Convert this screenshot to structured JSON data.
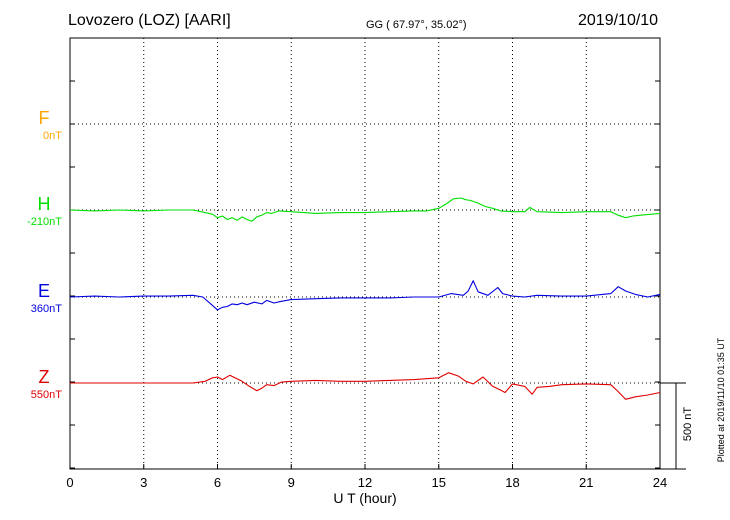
{
  "header": {
    "station": "Lovozero (LOZ)  [AARI]",
    "coords": "GG ( 67.97°,  35.02°)",
    "date": "2019/10/10"
  },
  "credit": "Plotted at 2019/11/10 01:35 UT",
  "scale_bar": {
    "label": "500 nT",
    "value": 500
  },
  "chart_data": {
    "type": "line",
    "title": "",
    "xlabel": "U T (hour)",
    "xlim": [
      0,
      24
    ],
    "xticks": [
      0,
      3,
      6,
      9,
      12,
      15,
      18,
      21,
      24
    ],
    "grid": true,
    "series": [
      {
        "name": "F",
        "baseline_label": "0nT",
        "color": "#FFA500",
        "x": [],
        "values": []
      },
      {
        "name": "H",
        "baseline_label": "-210nT",
        "color": "#00E000",
        "x": [
          0,
          1,
          2,
          3,
          4,
          5,
          5.5,
          5.8,
          6.0,
          6.2,
          6.4,
          6.6,
          6.8,
          7.0,
          7.2,
          7.4,
          7.6,
          7.8,
          8.0,
          8.2,
          8.5,
          9.0,
          9.5,
          10,
          11,
          12,
          13,
          14,
          14.5,
          15,
          15.3,
          15.6,
          15.9,
          16.1,
          16.3,
          16.6,
          16.9,
          17.2,
          17.5,
          18,
          18.5,
          18.7,
          19,
          20,
          21,
          22,
          22.3,
          22.6,
          22.9,
          23.2,
          23.6,
          24
        ],
        "values": [
          0,
          -5,
          0,
          -5,
          0,
          0,
          -15,
          -25,
          -45,
          -35,
          -55,
          -45,
          -60,
          -40,
          -55,
          -65,
          -40,
          -30,
          -15,
          -20,
          -5,
          -10,
          -15,
          -20,
          -15,
          -15,
          -10,
          -5,
          -5,
          10,
          35,
          65,
          70,
          60,
          55,
          40,
          20,
          10,
          -5,
          -10,
          -10,
          15,
          -10,
          -15,
          -10,
          -10,
          -30,
          -45,
          -35,
          -30,
          -25,
          -20
        ]
      },
      {
        "name": "E",
        "baseline_label": "360nT",
        "color": "#0000E0",
        "x": [
          0,
          1,
          2,
          3,
          4,
          5,
          5.4,
          5.8,
          6.0,
          6.2,
          6.4,
          6.6,
          6.8,
          7.0,
          7.2,
          7.5,
          7.8,
          8.0,
          8.3,
          8.6,
          9,
          10,
          11,
          12,
          13,
          14,
          15,
          15.5,
          16,
          16.2,
          16.4,
          16.6,
          17,
          17.4,
          17.6,
          18,
          18.5,
          19,
          20,
          21,
          22,
          22.3,
          22.6,
          23,
          23.5,
          24
        ],
        "values": [
          0,
          5,
          0,
          5,
          5,
          10,
          0,
          -50,
          -75,
          -60,
          -55,
          -40,
          -45,
          -35,
          -45,
          -30,
          -40,
          -20,
          -35,
          -25,
          -15,
          -10,
          -5,
          -5,
          -5,
          0,
          0,
          20,
          10,
          35,
          95,
          30,
          10,
          55,
          20,
          5,
          0,
          10,
          5,
          5,
          20,
          60,
          35,
          15,
          0,
          15
        ]
      },
      {
        "name": "Z",
        "baseline_label": "550nT",
        "color": "#E00000",
        "x": [
          0,
          1,
          2,
          3,
          4,
          5,
          5.5,
          5.8,
          6.0,
          6.2,
          6.5,
          7.0,
          7.3,
          7.6,
          7.8,
          8.0,
          8.3,
          8.6,
          9,
          10,
          11,
          12,
          13,
          14,
          15,
          15.4,
          15.8,
          16.1,
          16.4,
          16.8,
          17.2,
          17.5,
          17.7,
          18,
          18.5,
          18.8,
          19,
          19.5,
          20,
          21,
          22,
          22.3,
          22.6,
          23,
          23.5,
          24
        ],
        "values": [
          0,
          0,
          0,
          0,
          0,
          0,
          10,
          30,
          35,
          20,
          45,
          10,
          -20,
          -45,
          -30,
          -10,
          -15,
          5,
          10,
          15,
          10,
          10,
          15,
          20,
          30,
          60,
          40,
          10,
          -5,
          35,
          -20,
          -40,
          -55,
          -5,
          -20,
          -65,
          -25,
          -20,
          -10,
          -5,
          -10,
          -50,
          -95,
          -80,
          -70,
          -55
        ]
      }
    ]
  }
}
